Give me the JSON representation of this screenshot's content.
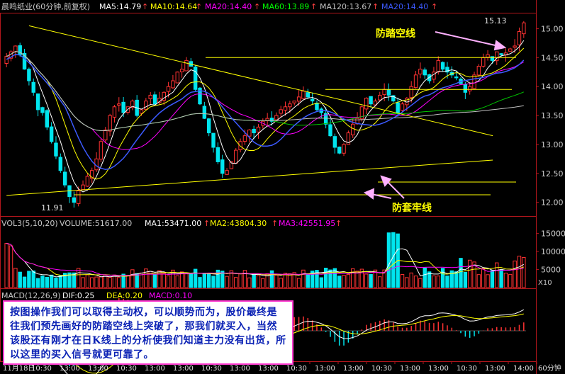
{
  "header": {
    "stock": "晨鸣纸业(60分钟,前复权)",
    "ma": [
      {
        "label": "MA5:14.79",
        "color": "#ffffff"
      },
      {
        "label": "MA10:14.64",
        "color": "#ffff00"
      },
      {
        "label": "MA20:14.40",
        "color": "#ff00ff"
      },
      {
        "label": "MA60:13.89",
        "color": "#00ff00"
      },
      {
        "label": "MA120:13.67",
        "color": "#c0c0c0"
      },
      {
        "label": "MA20:14.40",
        "color": "#3c5aff"
      }
    ]
  },
  "vol_header": {
    "title": "VOL3(5,10,20)",
    "volume": "VOLUME:51617.00",
    "ma1": "MA1:53471.00",
    "ma2": "MA2:43804.30",
    "ma3": "MA3:42551.95"
  },
  "macd_header": {
    "title": "MACD(12,26,9)",
    "dif": "DIF:0.25",
    "dea": "DEA:0.20",
    "macd": "MACD:0.10"
  },
  "annotations": {
    "high_label": "15.13",
    "low_label": "11.91",
    "resistance_label": "防踏空线",
    "support_label": "防套牢线",
    "vol_unit": "X10",
    "period": "60分钟"
  },
  "note": "按图操作我们可以取得主动权，可以顺势而为，股价最终是往我们预先画好的防踏空线上突破了，那我们就买入，当然该股还有刚才在日K线上的分析使我们知道主力没有出货，所以这里的买入信号就更可靠了。",
  "xaxis": {
    "labels": [
      "11月18日",
      "10:30",
      "13:00",
      "13:00",
      "10:30",
      "13:00",
      "13:00",
      "10:30",
      "13:00",
      "13:00",
      "10:30",
      "13:00",
      "13:00",
      "10:30",
      "13:00",
      "13:00",
      "10:30",
      "13:00",
      "14:00"
    ]
  },
  "chart_data": {
    "type": "candlestick",
    "title": "晨鸣纸业(60分钟,前复权)",
    "price_axis": {
      "ticks": [
        12.0,
        12.5,
        13.0,
        13.5,
        14.0,
        14.5,
        15.0
      ],
      "ylim": [
        11.8,
        15.25
      ]
    },
    "volume_axis": {
      "ticks": [
        5000,
        10000,
        15000
      ],
      "ylim": [
        0,
        16500
      ],
      "unit": "X10"
    },
    "macd_axis": {
      "ylim": [
        -0.35,
        0.35
      ]
    },
    "high": 15.13,
    "low": 11.91,
    "horizontal_lines": [
      14.5,
      13.95,
      12.35,
      12.13
    ],
    "trend_lines": [
      {
        "from": [
          5,
          15.05
        ],
        "to": [
          116,
          13.15
        ]
      },
      {
        "from": [
          0,
          12.12
        ],
        "to": [
          116,
          12.73
        ]
      }
    ],
    "closes": [
      14.52,
      14.6,
      14.7,
      14.55,
      14.3,
      14.1,
      13.9,
      13.6,
      13.55,
      13.3,
      13.05,
      12.8,
      12.55,
      12.3,
      12.1,
      12.0,
      12.2,
      12.3,
      12.45,
      12.55,
      12.75,
      13.05,
      13.25,
      13.5,
      13.65,
      13.7,
      13.55,
      13.65,
      13.75,
      13.5,
      13.6,
      13.75,
      13.85,
      13.7,
      13.8,
      13.9,
      14.0,
      14.1,
      14.25,
      14.3,
      14.45,
      14.35,
      13.95,
      13.7,
      13.45,
      13.2,
      12.95,
      12.7,
      12.5,
      12.55,
      12.7,
      12.9,
      13.05,
      13.15,
      13.25,
      13.2,
      13.3,
      13.4,
      13.45,
      13.4,
      13.5,
      13.6,
      13.65,
      13.7,
      13.75,
      13.82,
      13.92,
      13.82,
      13.75,
      13.6,
      13.55,
      13.35,
      13.15,
      12.95,
      12.85,
      13.0,
      13.2,
      13.35,
      13.45,
      13.65,
      13.8,
      13.7,
      13.75,
      13.85,
      13.95,
      13.85,
      13.75,
      13.55,
      13.7,
      13.8,
      14.0,
      14.2,
      14.3,
      14.2,
      14.1,
      14.25,
      14.45,
      14.3,
      14.25,
      14.2,
      14.15,
      14.05,
      13.9,
      14.0,
      14.2,
      14.35,
      14.5,
      14.55,
      14.45,
      14.6,
      14.55,
      14.58,
      14.65,
      14.7,
      14.95,
      15.1
    ],
    "ma": {
      "MA5": 14.79,
      "MA10": 14.64,
      "MA20": 14.4,
      "MA60": 13.89,
      "MA120": 13.67
    },
    "volume_ma": {
      "MA1": 53471.0,
      "MA2": 43804.3,
      "MA3": 42551.95,
      "VOLUME": 51617.0
    },
    "macd": {
      "DIF": 0.25,
      "DEA": 0.2,
      "MACD": 0.1
    }
  }
}
